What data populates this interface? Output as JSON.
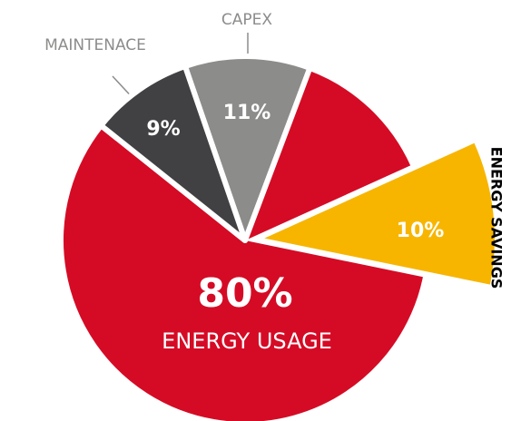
{
  "chart_data": {
    "type": "pie",
    "categories": [
      "CAPEX",
      "ENERGY USAGE",
      "MAINTENACE"
    ],
    "values": [
      11,
      80,
      9
    ],
    "value_labels": [
      "11%",
      "80%",
      "9%"
    ],
    "colors": [
      "#8c8c8b",
      "#d50b25",
      "#414042"
    ],
    "highlight": {
      "label": "ENERGY SAVINGS",
      "value": 10,
      "value_label": "10%",
      "color": "#f7b500"
    }
  }
}
